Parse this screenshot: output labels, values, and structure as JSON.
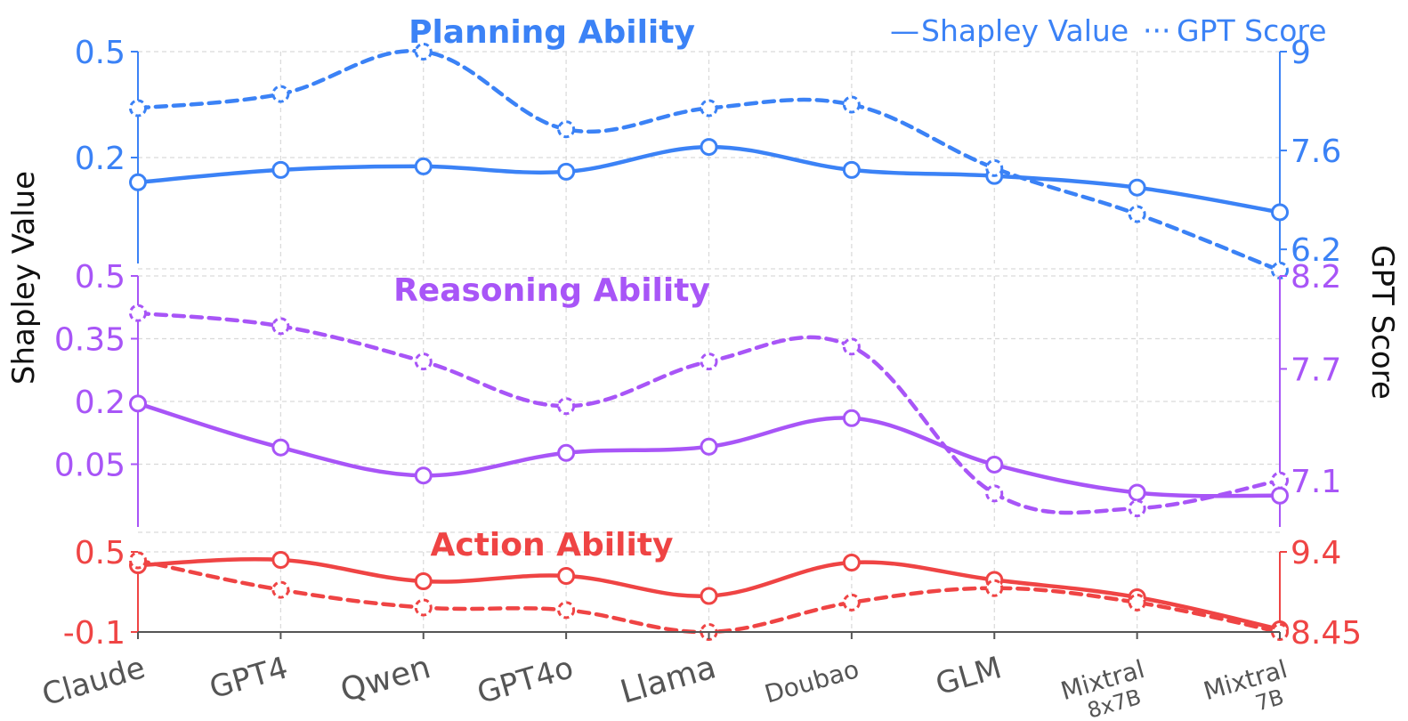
{
  "chart_data": {
    "type": "line",
    "categories": [
      {
        "label": "Claude",
        "sub": ""
      },
      {
        "label": "GPT4",
        "sub": ""
      },
      {
        "label": "Qwen",
        "sub": ""
      },
      {
        "label": "GPT4o",
        "sub": ""
      },
      {
        "label": "Llama",
        "sub": ""
      },
      {
        "label": "Doubao",
        "sub": ""
      },
      {
        "label": "GLM",
        "sub": ""
      },
      {
        "label": "Mixtral",
        "sub": "8x7B"
      },
      {
        "label": "Mixtral",
        "sub": "7B"
      }
    ],
    "ylabel_left": "Shapley Value",
    "ylabel_right": "GPT Score",
    "legend": {
      "placement": "top-right",
      "entries": [
        {
          "glyph": "—",
          "label": "Shapley Value",
          "style": "solid"
        },
        {
          "glyph": "···",
          "label": "GPT Score",
          "style": "dashed"
        }
      ]
    },
    "panels": [
      {
        "title": "Planning Ability",
        "color": "#3b82f6",
        "left_ticks": [
          "0.5",
          "0.2"
        ],
        "left_tick_values": [
          0.5,
          0.2
        ],
        "left_range": [
          -0.1,
          0.5
        ],
        "right_ticks": [
          "9",
          "7.6",
          "6.2"
        ],
        "right_tick_values": [
          9,
          7.6,
          6.2
        ],
        "right_range": [
          6.0,
          9.0
        ],
        "series": [
          {
            "name": "Shapley Value",
            "style": "solid",
            "values": [
              0.13,
              0.165,
              0.175,
              0.16,
              0.23,
              0.165,
              0.148,
              0.115,
              0.045
            ]
          },
          {
            "name": "GPT Score",
            "style": "dashed",
            "values": [
              8.2,
              8.4,
              9.0,
              7.9,
              8.2,
              8.25,
              7.35,
              6.7,
              5.9
            ]
          }
        ]
      },
      {
        "title": "Reasoning Ability",
        "color": "#a855f7",
        "left_ticks": [
          "0.5",
          "0.35",
          "0.2",
          "0.05"
        ],
        "left_tick_values": [
          0.5,
          0.35,
          0.2,
          0.05
        ],
        "left_range": [
          -0.1,
          0.5
        ],
        "right_ticks": [
          "8.2",
          "7.7",
          "7.1"
        ],
        "right_tick_values": [
          8.2,
          7.7,
          7.1
        ],
        "right_range": [
          6.85,
          8.2
        ],
        "series": [
          {
            "name": "Shapley Value",
            "style": "solid",
            "values": [
              0.195,
              0.09,
              0.023,
              0.077,
              0.092,
              0.16,
              0.049,
              -0.018,
              -0.025
            ]
          },
          {
            "name": "GPT Score",
            "style": "dashed",
            "values": [
              8.0,
              7.93,
              7.74,
              7.5,
              7.74,
              7.82,
              7.03,
              6.95,
              7.1
            ]
          }
        ]
      },
      {
        "title": "Action Ability",
        "color": "#ef4444",
        "left_ticks": [
          "0.5",
          "-0.1"
        ],
        "left_tick_values": [
          0.5,
          -0.1
        ],
        "left_range": [
          -0.1,
          0.5
        ],
        "right_ticks": [
          "9.4",
          "8.45"
        ],
        "right_tick_values": [
          9.4,
          8.45
        ],
        "right_range": [
          8.45,
          9.4
        ],
        "series": [
          {
            "name": "Shapley Value",
            "style": "solid",
            "values": [
              0.4,
              0.44,
              0.28,
              0.32,
              0.17,
              0.42,
              0.29,
              0.16,
              -0.08
            ]
          },
          {
            "name": "GPT Score",
            "style": "dashed",
            "values": [
              9.3,
              8.95,
              8.74,
              8.71,
              8.45,
              8.8,
              8.97,
              8.8,
              8.45
            ]
          }
        ]
      }
    ]
  }
}
